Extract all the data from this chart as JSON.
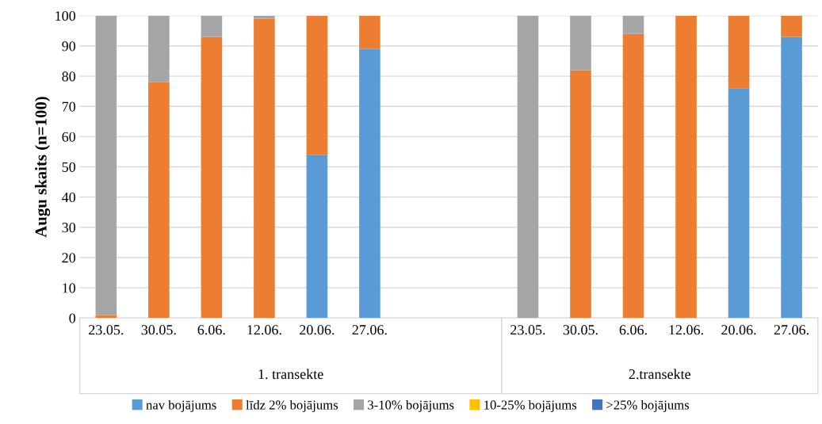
{
  "chart_data": {
    "type": "bar",
    "stacked": true,
    "ylabel": "Augu skaits (n=100)",
    "categories": [
      "23.05.",
      "30.05.",
      "6.06.",
      "12.06.",
      "20.06.",
      "27.06.",
      null,
      null,
      "23.05.",
      "30.05.",
      "6.06.",
      "12.06.",
      "20.06.",
      "27.06."
    ],
    "series": [
      {
        "name": "nav bojājums",
        "color": "#5b9bd5",
        "values": [
          0,
          0,
          0,
          0,
          54,
          89,
          null,
          null,
          0,
          0,
          0,
          0,
          76,
          93
        ]
      },
      {
        "name": "līdz 2% bojājums",
        "color": "#ed7d31",
        "values": [
          1,
          78,
          93,
          99,
          46,
          11,
          null,
          null,
          0,
          82,
          94,
          100,
          24,
          7
        ]
      },
      {
        "name": "3-10% bojājums",
        "color": "#a5a5a5",
        "values": [
          99,
          22,
          7,
          1,
          0,
          0,
          null,
          null,
          100,
          18,
          6,
          0,
          0,
          0
        ]
      },
      {
        "name": "10-25% bojājums",
        "color": "#ffc000",
        "values": [
          0,
          0,
          0,
          0,
          0,
          0,
          null,
          null,
          0,
          0,
          0,
          0,
          0,
          0
        ]
      },
      {
        "name": ">25% bojājums",
        "color": "#4472c4",
        "values": [
          0,
          0,
          0,
          0,
          0,
          0,
          null,
          null,
          0,
          0,
          0,
          0,
          0,
          0
        ]
      }
    ],
    "annotations": [
      "1. transekte",
      "2.transekte"
    ],
    "ylim": [
      0,
      100
    ],
    "yticks": [
      0,
      10,
      20,
      30,
      40,
      50,
      60,
      70,
      80,
      90,
      100
    ],
    "grid": "y",
    "legend": "bottom"
  }
}
